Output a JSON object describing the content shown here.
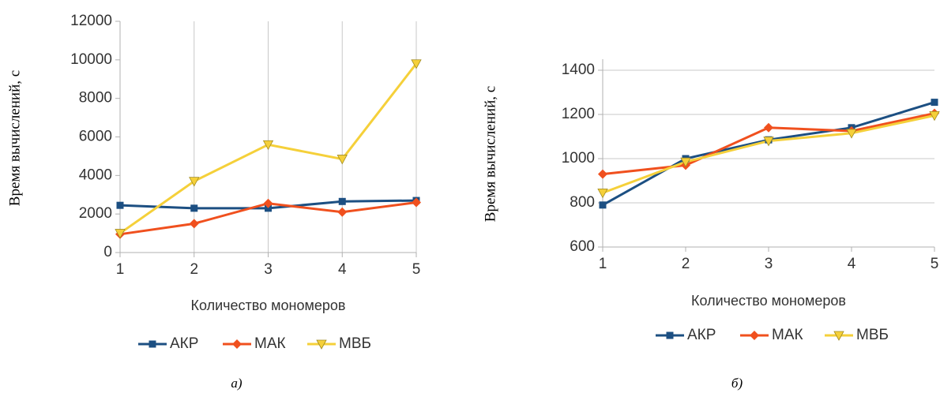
{
  "chart_data": [
    {
      "type": "line",
      "caption": "а)",
      "x_label": "Количество мономеров",
      "y_label": "Время вычислений, с",
      "x": [
        1,
        2,
        3,
        4,
        5
      ],
      "xlim": [
        1,
        5
      ],
      "xticks": [
        1,
        2,
        3,
        4,
        5
      ],
      "ylim": [
        0,
        12000
      ],
      "yticks": [
        0,
        2000,
        4000,
        6000,
        8000,
        10000,
        12000
      ],
      "grid": "x",
      "legend": "bottom",
      "series": [
        {
          "name": "АКР",
          "color": "#1c4f82",
          "marker": "square",
          "values": [
            2450,
            2300,
            2300,
            2650,
            2700
          ]
        },
        {
          "name": "МАК",
          "color": "#f0501e",
          "marker": "diamond",
          "values": [
            950,
            1500,
            2550,
            2100,
            2600
          ]
        },
        {
          "name": "МВБ",
          "color": "#f5d03a",
          "marker": "triangle-down",
          "values": [
            1000,
            3700,
            5600,
            4850,
            9800
          ]
        }
      ]
    },
    {
      "type": "line",
      "caption": "б)",
      "x_label": "Количество мономеров",
      "y_label": "Время вычислений, с",
      "x": [
        1,
        2,
        3,
        4,
        5
      ],
      "xlim": [
        1,
        5
      ],
      "xticks": [
        1,
        2,
        3,
        4,
        5
      ],
      "ylim": [
        600,
        1450
      ],
      "yticks": [
        600,
        800,
        1000,
        1200,
        1400
      ],
      "grid": "y",
      "legend": "bottom",
      "series": [
        {
          "name": "АКР",
          "color": "#1c4f82",
          "marker": "square",
          "values": [
            790,
            1000,
            1085,
            1140,
            1255
          ]
        },
        {
          "name": "МАК",
          "color": "#f0501e",
          "marker": "diamond",
          "values": [
            930,
            970,
            1140,
            1125,
            1205
          ]
        },
        {
          "name": "МВБ",
          "color": "#f5d03a",
          "marker": "triangle-down",
          "values": [
            845,
            985,
            1080,
            1115,
            1195
          ]
        }
      ]
    }
  ]
}
